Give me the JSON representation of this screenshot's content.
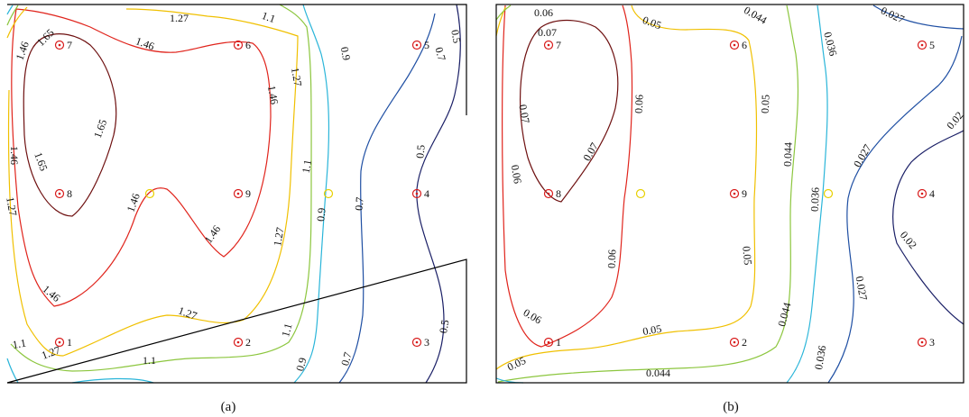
{
  "colors": {
    "background": "#ffffff",
    "frame": "#000000",
    "sensor_marker": "#d81b1b",
    "extra_marker": "#e8d000"
  },
  "chart_data": [
    {
      "type": "contour",
      "caption": "(a)",
      "grid": false,
      "sensors": [
        {
          "label": "1",
          "col": 0,
          "row": 2
        },
        {
          "label": "2",
          "col": 1,
          "row": 2
        },
        {
          "label": "3",
          "col": 2,
          "row": 2
        },
        {
          "label": "4",
          "col": 2,
          "row": 1
        },
        {
          "label": "5",
          "col": 2,
          "row": 0
        },
        {
          "label": "6",
          "col": 1,
          "row": 0
        },
        {
          "label": "7",
          "col": 0,
          "row": 0
        },
        {
          "label": "8",
          "col": 0,
          "row": 1
        },
        {
          "label": "9",
          "col": 1,
          "row": 1
        }
      ],
      "levels": [
        {
          "value": 1.65,
          "color": "#6e1010"
        },
        {
          "value": 1.46,
          "color": "#e0241c"
        },
        {
          "value": 1.27,
          "color": "#f0c000"
        },
        {
          "value": 1.1,
          "color": "#8cc63e"
        },
        {
          "value": 0.9,
          "color": "#2ab5d9"
        },
        {
          "value": 0.7,
          "color": "#1f4fa3"
        },
        {
          "value": 0.5,
          "color": "#1a1f66"
        }
      ],
      "contour_labels": [
        "1.27",
        "1.1",
        "0.5",
        "1.46",
        "1.65",
        "1.46",
        "0.7",
        "0.9",
        "1.27",
        "1.46",
        "1.65",
        "1.65",
        "1.46",
        "1.1",
        "0.5",
        "1.27",
        "1.46",
        "0.9",
        "0.7",
        "1.46",
        "1.27",
        "1.46",
        "1.27",
        "1.1",
        "1.1",
        "1.27",
        "1.1",
        "0.9",
        "0.7",
        "0.5"
      ]
    },
    {
      "type": "contour",
      "caption": "(b)",
      "grid": false,
      "sensors": [
        {
          "label": "1",
          "col": 0,
          "row": 2
        },
        {
          "label": "2",
          "col": 1,
          "row": 2
        },
        {
          "label": "3",
          "col": 2,
          "row": 2
        },
        {
          "label": "4",
          "col": 2,
          "row": 1
        },
        {
          "label": "5",
          "col": 2,
          "row": 0
        },
        {
          "label": "6",
          "col": 1,
          "row": 0
        },
        {
          "label": "7",
          "col": 0,
          "row": 0
        },
        {
          "label": "8",
          "col": 0,
          "row": 1
        },
        {
          "label": "9",
          "col": 1,
          "row": 1
        }
      ],
      "levels": [
        {
          "value": 0.07,
          "color": "#6e1010"
        },
        {
          "value": 0.06,
          "color": "#e0241c"
        },
        {
          "value": 0.05,
          "color": "#f0c000"
        },
        {
          "value": 0.044,
          "color": "#8cc63e"
        },
        {
          "value": 0.036,
          "color": "#2ab5d9"
        },
        {
          "value": 0.027,
          "color": "#1f4fa3"
        },
        {
          "value": 0.02,
          "color": "#1a1f66"
        }
      ],
      "contour_labels": [
        "0.06",
        "0.07",
        "0.05",
        "0.044",
        "0.036",
        "0.027",
        "0.07",
        "0.06",
        "0.05",
        "0.07",
        "0.044",
        "0.027",
        "0.02",
        "0.06",
        "0.036",
        "0.06",
        "0.05",
        "0.02",
        "0.027",
        "0.06",
        "0.05",
        "0.044",
        "0.036",
        "0.05",
        "0.044"
      ]
    }
  ]
}
